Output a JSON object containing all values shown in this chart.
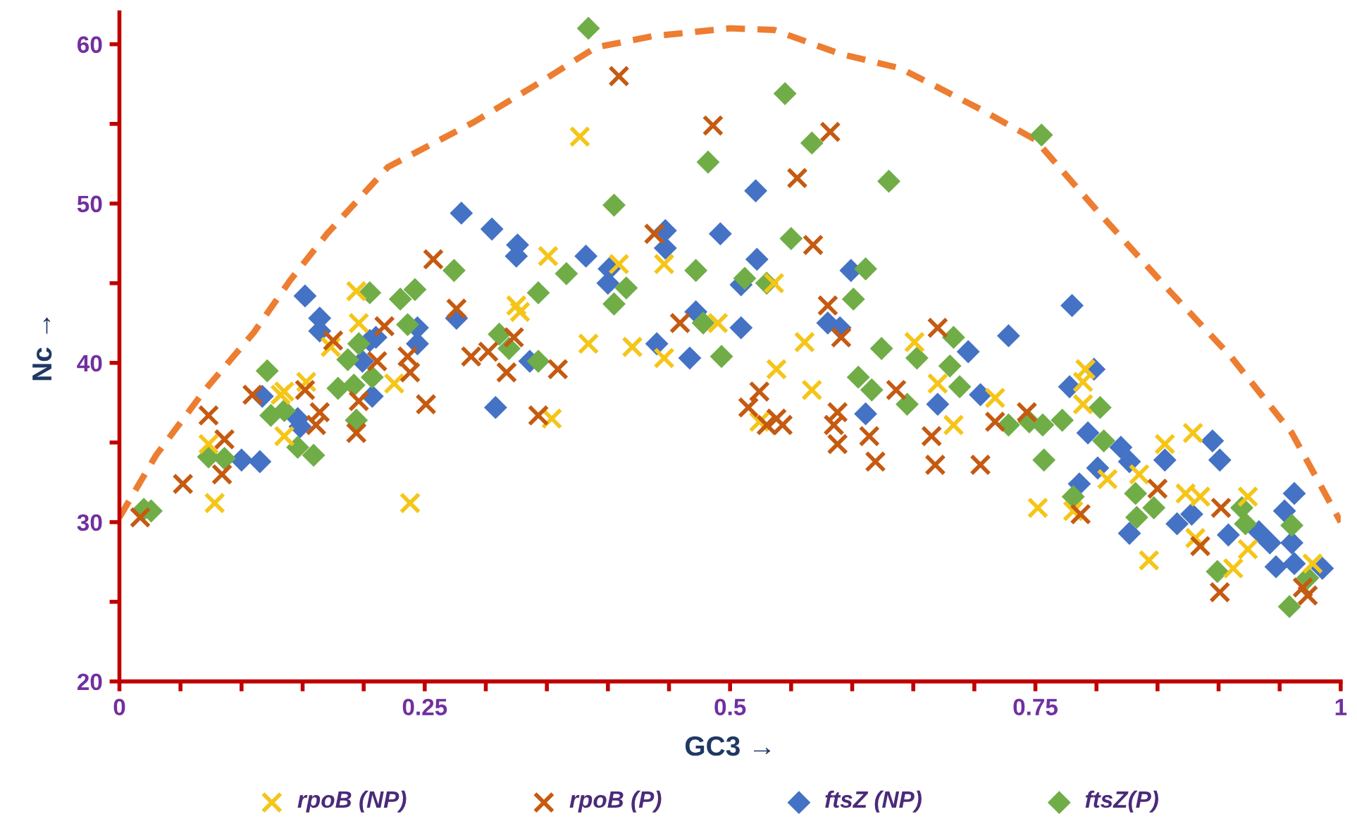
{
  "chart_data": {
    "type": "scatter",
    "xlabel": "GC3 →",
    "ylabel": "Nc →",
    "xlim": [
      0,
      1
    ],
    "ylim": [
      20,
      62
    ],
    "xticks": [
      0,
      {
        "value": 0.05,
        "label": null
      },
      {
        "value": 0.1,
        "label": null
      },
      {
        "value": 0.15,
        "label": null
      },
      {
        "value": 0.2,
        "label": null
      },
      0.25,
      {
        "value": 0.3,
        "label": null
      },
      {
        "value": 0.35,
        "label": null
      },
      {
        "value": 0.4,
        "label": null
      },
      {
        "value": 0.45,
        "label": null
      },
      0.5,
      {
        "value": 0.55,
        "label": null
      },
      {
        "value": 0.6,
        "label": null
      },
      {
        "value": 0.65,
        "label": null
      },
      {
        "value": 0.7,
        "label": null
      },
      0.75,
      {
        "value": 0.8,
        "label": null
      },
      {
        "value": 0.85,
        "label": null
      },
      {
        "value": 0.9,
        "label": null
      },
      {
        "value": 0.95,
        "label": null
      },
      1
    ],
    "yticks": [
      20,
      {
        "value": 25,
        "label": null
      },
      30,
      {
        "value": 35,
        "label": null
      },
      40,
      {
        "value": 45,
        "label": null
      },
      50,
      {
        "value": 55,
        "label": null
      },
      60
    ],
    "grid": false,
    "legend": "bottom",
    "series": [
      {
        "type": "line",
        "color": "#ed7d31",
        "line_style": "dashed",
        "marker": "none",
        "x": [
          0,
          0.03,
          0.07,
          0.11,
          0.14,
          0.17,
          0.22,
          0.29,
          0.34,
          0.39,
          0.436,
          0.5,
          0.536,
          0.59,
          0.639,
          0.67,
          0.708,
          0.75,
          0.8,
          0.86,
          0.91,
          0.96,
          1
        ],
        "values": [
          30.3,
          34.2,
          38.3,
          41.9,
          45.2,
          48.1,
          52.3,
          55.1,
          57.4,
          59.8,
          60.5,
          61,
          60.9,
          59.4,
          58.5,
          57.3,
          55.8,
          54,
          49.6,
          44.5,
          40.4,
          35.6,
          30
        ]
      },
      {
        "name": "rpoB (NP)",
        "color": "#f5c518",
        "marker": "cross",
        "x": [
          0.073,
          0.078,
          0.132,
          0.135,
          0.135,
          0.153,
          0.173,
          0.194,
          0.196,
          0.225,
          0.238,
          0.325,
          0.328,
          0.351,
          0.354,
          0.377,
          0.384,
          0.409,
          0.42,
          0.446,
          0.446,
          0.49,
          0.524,
          0.536,
          0.538,
          0.561,
          0.567,
          0.651,
          0.67,
          0.683,
          0.717,
          0.752,
          0.781,
          0.789,
          0.789,
          0.791,
          0.809,
          0.835,
          0.843,
          0.856,
          0.873,
          0.879,
          0.881,
          0.885,
          0.912,
          0.924,
          0.924,
          0.977
        ],
        "values": [
          34.9,
          31.2,
          38.0,
          35.4,
          38.2,
          38.8,
          41.0,
          44.5,
          42.5,
          38.7,
          31.2,
          43.6,
          43.2,
          46.7,
          36.5,
          54.2,
          41.2,
          46.2,
          41.0,
          46.2,
          40.3,
          42.5,
          36.3,
          45.0,
          39.6,
          41.3,
          38.3,
          41.3,
          38.7,
          36.1,
          37.8,
          30.9,
          30.7,
          37.4,
          38.8,
          39.6,
          32.7,
          33.0,
          27.6,
          34.9,
          31.8,
          35.6,
          29.0,
          31.6,
          27.1,
          31.6,
          28.3,
          27.4
        ]
      },
      {
        "name": "rpoB (P)",
        "color": "#c55a11",
        "marker": "cross",
        "x": [
          0.017,
          0.052,
          0.073,
          0.084,
          0.086,
          0.109,
          0.152,
          0.161,
          0.164,
          0.175,
          0.194,
          0.196,
          0.211,
          0.217,
          0.236,
          0.238,
          0.251,
          0.257,
          0.276,
          0.288,
          0.302,
          0.317,
          0.323,
          0.343,
          0.359,
          0.409,
          0.438,
          0.459,
          0.486,
          0.515,
          0.524,
          0.53,
          0.538,
          0.543,
          0.555,
          0.568,
          0.58,
          0.582,
          0.585,
          0.588,
          0.588,
          0.591,
          0.614,
          0.619,
          0.636,
          0.665,
          0.668,
          0.67,
          0.705,
          0.717,
          0.743,
          0.787,
          0.85,
          0.885,
          0.901,
          0.902,
          0.969,
          0.973
        ],
        "values": [
          30.3,
          32.4,
          36.7,
          33.0,
          35.2,
          38.0,
          38.3,
          36.1,
          36.9,
          41.4,
          35.6,
          37.6,
          40.1,
          42.3,
          40.4,
          39.4,
          37.4,
          46.5,
          43.4,
          40.4,
          40.7,
          39.4,
          41.6,
          36.7,
          39.6,
          58.0,
          48.1,
          42.5,
          54.9,
          37.2,
          38.2,
          36.1,
          36.5,
          36.1,
          51.6,
          47.4,
          43.6,
          54.5,
          36.1,
          34.9,
          36.9,
          41.6,
          35.4,
          33.8,
          38.3,
          35.4,
          33.6,
          42.2,
          33.6,
          36.3,
          36.9,
          30.5,
          32.1,
          28.5,
          25.6,
          30.9,
          25.9,
          25.4
        ]
      },
      {
        "name": "ftsZ (NP)",
        "color": "#4472c4",
        "marker": "diamond",
        "x": [
          0.1,
          0.115,
          0.117,
          0.146,
          0.148,
          0.152,
          0.164,
          0.164,
          0.199,
          0.205,
          0.207,
          0.21,
          0.244,
          0.244,
          0.276,
          0.28,
          0.305,
          0.308,
          0.325,
          0.326,
          0.336,
          0.382,
          0.4,
          0.401,
          0.44,
          0.447,
          0.447,
          0.467,
          0.472,
          0.492,
          0.509,
          0.509,
          0.521,
          0.522,
          0.58,
          0.59,
          0.599,
          0.611,
          0.67,
          0.695,
          0.705,
          0.728,
          0.778,
          0.78,
          0.786,
          0.793,
          0.798,
          0.801,
          0.82,
          0.827,
          0.827,
          0.856,
          0.866,
          0.878,
          0.895,
          0.901,
          0.908,
          0.933,
          0.942,
          0.947,
          0.954,
          0.96,
          0.962,
          0.962,
          0.985
        ],
        "values": [
          33.9,
          33.8,
          37.9,
          36.5,
          36.0,
          44.2,
          42.8,
          42.0,
          40.1,
          41.4,
          37.9,
          41.6,
          42.2,
          41.2,
          42.8,
          49.4,
          48.4,
          37.2,
          46.7,
          47.4,
          40.1,
          46.7,
          45.0,
          45.9,
          41.2,
          48.3,
          47.2,
          40.3,
          43.2,
          48.1,
          44.9,
          42.2,
          50.8,
          46.5,
          42.5,
          42.2,
          45.8,
          36.8,
          37.4,
          40.7,
          38.0,
          41.7,
          38.5,
          43.6,
          32.4,
          35.6,
          39.6,
          33.4,
          34.7,
          33.8,
          29.3,
          33.9,
          29.9,
          30.5,
          35.1,
          33.9,
          29.2,
          29.4,
          28.7,
          27.2,
          30.7,
          28.7,
          31.8,
          27.4,
          27.1
        ]
      },
      {
        "name": "ftsZ(P)",
        "color": "#70ad47",
        "marker": "diamond",
        "x": [
          0.02,
          0.026,
          0.073,
          0.086,
          0.121,
          0.124,
          0.135,
          0.146,
          0.159,
          0.179,
          0.187,
          0.192,
          0.194,
          0.196,
          0.205,
          0.207,
          0.23,
          0.236,
          0.242,
          0.274,
          0.311,
          0.319,
          0.343,
          0.343,
          0.366,
          0.384,
          0.405,
          0.405,
          0.415,
          0.472,
          0.478,
          0.482,
          0.493,
          0.512,
          0.53,
          0.545,
          0.55,
          0.567,
          0.601,
          0.605,
          0.611,
          0.616,
          0.624,
          0.63,
          0.645,
          0.653,
          0.68,
          0.683,
          0.688,
          0.728,
          0.745,
          0.755,
          0.756,
          0.757,
          0.772,
          0.781,
          0.803,
          0.806,
          0.832,
          0.833,
          0.847,
          0.899,
          0.919,
          0.922,
          0.958,
          0.96,
          0.973
        ],
        "values": [
          30.8,
          30.7,
          34.1,
          34.0,
          39.5,
          36.7,
          37.0,
          34.7,
          34.2,
          38.4,
          40.2,
          38.6,
          36.4,
          41.2,
          44.4,
          39.1,
          44.0,
          42.4,
          44.6,
          45.8,
          41.8,
          40.9,
          44.4,
          40.1,
          45.6,
          61.0,
          49.9,
          43.7,
          44.7,
          45.8,
          42.5,
          52.6,
          40.4,
          45.3,
          45.0,
          56.9,
          47.8,
          53.8,
          44.0,
          39.1,
          45.9,
          38.3,
          40.9,
          51.4,
          37.4,
          40.3,
          39.8,
          41.6,
          38.5,
          36.1,
          36.3,
          54.3,
          36.1,
          33.9,
          36.4,
          31.6,
          37.2,
          35.1,
          31.8,
          30.3,
          30.9,
          26.9,
          30.9,
          29.9,
          24.7,
          29.8,
          26.5
        ]
      }
    ]
  }
}
